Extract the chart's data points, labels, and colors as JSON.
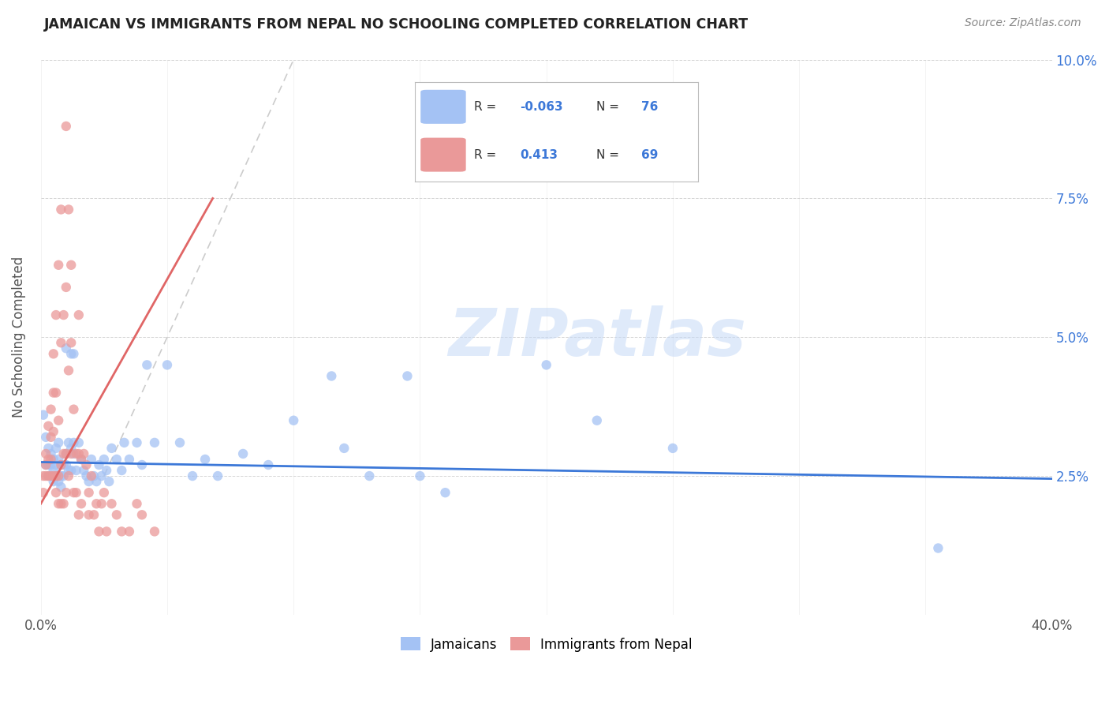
{
  "title": "JAMAICAN VS IMMIGRANTS FROM NEPAL NO SCHOOLING COMPLETED CORRELATION CHART",
  "source": "Source: ZipAtlas.com",
  "ylabel": "No Schooling Completed",
  "xlim": [
    0.0,
    0.4
  ],
  "ylim": [
    0.0,
    0.1
  ],
  "blue_color": "#a4c2f4",
  "pink_color": "#ea9999",
  "blue_line_color": "#3c78d8",
  "pink_line_color": "#e06666",
  "diagonal_color": "#cccccc",
  "watermark_color": "#c9daf8",
  "watermark_text": "ZIPatlas",
  "blue_scatter": [
    [
      0.001,
      0.036
    ],
    [
      0.002,
      0.032
    ],
    [
      0.002,
      0.027
    ],
    [
      0.003,
      0.03
    ],
    [
      0.003,
      0.027
    ],
    [
      0.003,
      0.025
    ],
    [
      0.004,
      0.029
    ],
    [
      0.004,
      0.027
    ],
    [
      0.004,
      0.025
    ],
    [
      0.005,
      0.028
    ],
    [
      0.005,
      0.026
    ],
    [
      0.005,
      0.024
    ],
    [
      0.006,
      0.03
    ],
    [
      0.006,
      0.027
    ],
    [
      0.006,
      0.025
    ],
    [
      0.007,
      0.031
    ],
    [
      0.007,
      0.028
    ],
    [
      0.007,
      0.025
    ],
    [
      0.007,
      0.024
    ],
    [
      0.008,
      0.027
    ],
    [
      0.008,
      0.025
    ],
    [
      0.008,
      0.023
    ],
    [
      0.009,
      0.027
    ],
    [
      0.009,
      0.025
    ],
    [
      0.01,
      0.029
    ],
    [
      0.01,
      0.027
    ],
    [
      0.01,
      0.048
    ],
    [
      0.011,
      0.031
    ],
    [
      0.011,
      0.026
    ],
    [
      0.012,
      0.047
    ],
    [
      0.012,
      0.03
    ],
    [
      0.012,
      0.026
    ],
    [
      0.013,
      0.047
    ],
    [
      0.013,
      0.031
    ],
    [
      0.013,
      0.029
    ],
    [
      0.014,
      0.026
    ],
    [
      0.015,
      0.031
    ],
    [
      0.016,
      0.028
    ],
    [
      0.017,
      0.026
    ],
    [
      0.018,
      0.025
    ],
    [
      0.019,
      0.024
    ],
    [
      0.02,
      0.028
    ],
    [
      0.021,
      0.025
    ],
    [
      0.022,
      0.024
    ],
    [
      0.023,
      0.027
    ],
    [
      0.024,
      0.025
    ],
    [
      0.025,
      0.028
    ],
    [
      0.026,
      0.026
    ],
    [
      0.027,
      0.024
    ],
    [
      0.028,
      0.03
    ],
    [
      0.03,
      0.028
    ],
    [
      0.032,
      0.026
    ],
    [
      0.033,
      0.031
    ],
    [
      0.035,
      0.028
    ],
    [
      0.038,
      0.031
    ],
    [
      0.04,
      0.027
    ],
    [
      0.042,
      0.045
    ],
    [
      0.045,
      0.031
    ],
    [
      0.05,
      0.045
    ],
    [
      0.055,
      0.031
    ],
    [
      0.06,
      0.025
    ],
    [
      0.065,
      0.028
    ],
    [
      0.07,
      0.025
    ],
    [
      0.08,
      0.029
    ],
    [
      0.09,
      0.027
    ],
    [
      0.1,
      0.035
    ],
    [
      0.115,
      0.043
    ],
    [
      0.12,
      0.03
    ],
    [
      0.13,
      0.025
    ],
    [
      0.145,
      0.043
    ],
    [
      0.15,
      0.025
    ],
    [
      0.16,
      0.022
    ],
    [
      0.2,
      0.045
    ],
    [
      0.22,
      0.035
    ],
    [
      0.25,
      0.03
    ],
    [
      0.355,
      0.012
    ]
  ],
  "pink_scatter": [
    [
      0.001,
      0.025
    ],
    [
      0.001,
      0.022
    ],
    [
      0.002,
      0.029
    ],
    [
      0.002,
      0.027
    ],
    [
      0.002,
      0.025
    ],
    [
      0.003,
      0.034
    ],
    [
      0.003,
      0.028
    ],
    [
      0.003,
      0.025
    ],
    [
      0.004,
      0.037
    ],
    [
      0.004,
      0.032
    ],
    [
      0.004,
      0.028
    ],
    [
      0.004,
      0.025
    ],
    [
      0.005,
      0.047
    ],
    [
      0.005,
      0.04
    ],
    [
      0.005,
      0.033
    ],
    [
      0.005,
      0.025
    ],
    [
      0.006,
      0.054
    ],
    [
      0.006,
      0.04
    ],
    [
      0.006,
      0.025
    ],
    [
      0.006,
      0.022
    ],
    [
      0.007,
      0.063
    ],
    [
      0.007,
      0.035
    ],
    [
      0.007,
      0.025
    ],
    [
      0.007,
      0.02
    ],
    [
      0.008,
      0.073
    ],
    [
      0.008,
      0.049
    ],
    [
      0.008,
      0.027
    ],
    [
      0.008,
      0.02
    ],
    [
      0.009,
      0.054
    ],
    [
      0.009,
      0.029
    ],
    [
      0.009,
      0.02
    ],
    [
      0.01,
      0.088
    ],
    [
      0.01,
      0.059
    ],
    [
      0.01,
      0.029
    ],
    [
      0.01,
      0.022
    ],
    [
      0.011,
      0.073
    ],
    [
      0.011,
      0.044
    ],
    [
      0.011,
      0.025
    ],
    [
      0.012,
      0.063
    ],
    [
      0.012,
      0.049
    ],
    [
      0.012,
      0.029
    ],
    [
      0.013,
      0.037
    ],
    [
      0.013,
      0.022
    ],
    [
      0.014,
      0.029
    ],
    [
      0.014,
      0.022
    ],
    [
      0.015,
      0.054
    ],
    [
      0.015,
      0.029
    ],
    [
      0.015,
      0.018
    ],
    [
      0.016,
      0.028
    ],
    [
      0.016,
      0.02
    ],
    [
      0.017,
      0.029
    ],
    [
      0.018,
      0.027
    ],
    [
      0.019,
      0.022
    ],
    [
      0.019,
      0.018
    ],
    [
      0.02,
      0.025
    ],
    [
      0.021,
      0.018
    ],
    [
      0.022,
      0.02
    ],
    [
      0.023,
      0.015
    ],
    [
      0.024,
      0.02
    ],
    [
      0.025,
      0.022
    ],
    [
      0.026,
      0.015
    ],
    [
      0.028,
      0.02
    ],
    [
      0.03,
      0.018
    ],
    [
      0.032,
      0.015
    ],
    [
      0.035,
      0.015
    ],
    [
      0.038,
      0.02
    ],
    [
      0.04,
      0.018
    ],
    [
      0.045,
      0.015
    ]
  ],
  "blue_line_x": [
    0.0,
    0.4
  ],
  "blue_line_y": [
    0.0275,
    0.0245
  ],
  "pink_line_x": [
    0.0,
    0.068
  ],
  "pink_line_y": [
    0.02,
    0.075
  ],
  "diag_line_x": [
    0.025,
    0.1
  ],
  "diag_line_y": [
    0.025,
    0.1
  ]
}
